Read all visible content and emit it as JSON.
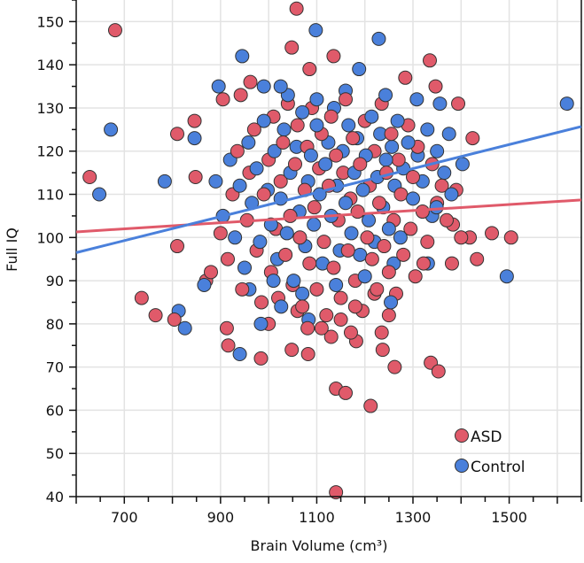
{
  "chart_data": {
    "type": "scatter",
    "title": "",
    "xlabel": "Brain Volume (cm³)",
    "ylabel": "Full IQ",
    "xlim": [
      600,
      1650
    ],
    "ylim": [
      40,
      155
    ],
    "xticks": [
      700,
      900,
      1100,
      1300,
      1500
    ],
    "xtick_labels": [
      "700",
      "900",
      "1100",
      "1300",
      "1500"
    ],
    "yticks": [
      40,
      50,
      60,
      70,
      80,
      90,
      100,
      110,
      120,
      130,
      140,
      150
    ],
    "ytick_labels": [
      "40",
      "50",
      "60",
      "70",
      "80",
      "90",
      "100",
      "110",
      "120",
      "130",
      "140",
      "150"
    ],
    "grid": true,
    "legend_position": "bottom-right",
    "series": [
      {
        "name": "ASD",
        "color": "#e05a6a",
        "fit_line": {
          "x": [
            600,
            1650
          ],
          "y": [
            101.3,
            108.7
          ]
        },
        "points": [
          [
            628,
            114
          ],
          [
            681,
            148
          ],
          [
            736,
            86
          ],
          [
            765,
            82
          ],
          [
            804,
            81
          ],
          [
            810,
            98
          ],
          [
            810,
            124
          ],
          [
            846,
            127
          ],
          [
            848,
            114
          ],
          [
            1058,
            153
          ],
          [
            1135,
            142
          ],
          [
            1140,
            65
          ],
          [
            1160,
            64
          ],
          [
            1140,
            41
          ],
          [
            1212,
            61
          ],
          [
            1262,
            70
          ],
          [
            1337,
            71
          ],
          [
            1353,
            69
          ],
          [
            1284,
            137
          ],
          [
            1347,
            135
          ],
          [
            1400,
            100
          ],
          [
            1418,
            100
          ],
          [
            1433,
            95
          ],
          [
            1464,
            101
          ],
          [
            1504,
            100
          ],
          [
            1424,
            123
          ],
          [
            1394,
            131
          ],
          [
            1390,
            111
          ],
          [
            1383,
            103
          ],
          [
            1381,
            94
          ],
          [
            1322,
            94
          ],
          [
            1335,
            141
          ],
          [
            916,
            75
          ],
          [
            913,
            79
          ],
          [
            984,
            72
          ],
          [
            1048,
            74
          ],
          [
            1081,
            79
          ],
          [
            1082,
            73
          ],
          [
            1130,
            77
          ],
          [
            1171,
            78
          ],
          [
            1182,
            76
          ],
          [
            1237,
            74
          ],
          [
            1235,
            78
          ],
          [
            905,
            132
          ],
          [
            942,
            133
          ],
          [
            962,
            136
          ],
          [
            1085,
            139
          ],
          [
            1048,
            144
          ],
          [
            870,
            90
          ],
          [
            880,
            92
          ],
          [
            900,
            101
          ],
          [
            915,
            95
          ],
          [
            925,
            110
          ],
          [
            935,
            120
          ],
          [
            945,
            88
          ],
          [
            955,
            104
          ],
          [
            960,
            115
          ],
          [
            970,
            125
          ],
          [
            975,
            97
          ],
          [
            985,
            85
          ],
          [
            990,
            110
          ],
          [
            1000,
            118
          ],
          [
            1005,
            92
          ],
          [
            1010,
            128
          ],
          [
            1015,
            102
          ],
          [
            1020,
            86
          ],
          [
            1025,
            113
          ],
          [
            1030,
            122
          ],
          [
            1035,
            96
          ],
          [
            1040,
            131
          ],
          [
            1045,
            105
          ],
          [
            1050,
            89
          ],
          [
            1055,
            117
          ],
          [
            1060,
            126
          ],
          [
            1065,
            100
          ],
          [
            1070,
            84
          ],
          [
            1075,
            111
          ],
          [
            1080,
            121
          ],
          [
            1085,
            94
          ],
          [
            1090,
            130
          ],
          [
            1095,
            107
          ],
          [
            1100,
            88
          ],
          [
            1105,
            116
          ],
          [
            1110,
            124
          ],
          [
            1115,
            99
          ],
          [
            1120,
            82
          ],
          [
            1125,
            112
          ],
          [
            1130,
            128
          ],
          [
            1135,
            93
          ],
          [
            1140,
            119
          ],
          [
            1145,
            104
          ],
          [
            1150,
            86
          ],
          [
            1155,
            115
          ],
          [
            1160,
            132
          ],
          [
            1165,
            97
          ],
          [
            1170,
            109
          ],
          [
            1175,
            123
          ],
          [
            1180,
            90
          ],
          [
            1185,
            106
          ],
          [
            1190,
            117
          ],
          [
            1195,
            83
          ],
          [
            1200,
            127
          ],
          [
            1205,
            100
          ],
          [
            1210,
            112
          ],
          [
            1215,
            95
          ],
          [
            1220,
            120
          ],
          [
            1225,
            88
          ],
          [
            1230,
            108
          ],
          [
            1235,
            131
          ],
          [
            1240,
            98
          ],
          [
            1245,
            115
          ],
          [
            1250,
            92
          ],
          [
            1255,
            124
          ],
          [
            1260,
            104
          ],
          [
            1265,
            87
          ],
          [
            1270,
            118
          ],
          [
            1275,
            110
          ],
          [
            1280,
            96
          ],
          [
            1290,
            126
          ],
          [
            1295,
            102
          ],
          [
            1300,
            114
          ],
          [
            1305,
            91
          ],
          [
            1310,
            121
          ],
          [
            1320,
            106
          ],
          [
            1330,
            99
          ],
          [
            1340,
            117
          ],
          [
            1350,
            108
          ],
          [
            1360,
            112
          ],
          [
            1370,
            104
          ],
          [
            1000,
            80
          ],
          [
            1060,
            83
          ],
          [
            1110,
            79
          ],
          [
            1150,
            81
          ],
          [
            1180,
            84
          ],
          [
            1220,
            87
          ],
          [
            1250,
            82
          ]
        ]
      },
      {
        "name": "Control",
        "color": "#4a80db",
        "fit_line": {
          "x": [
            600,
            1650
          ],
          "y": [
            96.5,
            125.7
          ]
        },
        "points": [
          [
            648,
            110
          ],
          [
            672,
            125
          ],
          [
            784,
            113
          ],
          [
            813,
            83
          ],
          [
            826,
            79
          ],
          [
            846,
            123
          ],
          [
            866,
            89
          ],
          [
            896,
            135
          ],
          [
            945,
            142
          ],
          [
            990,
            135
          ],
          [
            1025,
            135
          ],
          [
            1098,
            148
          ],
          [
            1229,
            146
          ],
          [
            1188,
            139
          ],
          [
            1243,
            133
          ],
          [
            1308,
            132
          ],
          [
            940,
            73
          ],
          [
            984,
            80
          ],
          [
            1026,
            84
          ],
          [
            1083,
            81
          ],
          [
            1254,
            85
          ],
          [
            1331,
            94
          ],
          [
            1349,
            107
          ],
          [
            1403,
            117
          ],
          [
            1495,
            91
          ],
          [
            1620,
            131
          ],
          [
            1356,
            131
          ],
          [
            890,
            113
          ],
          [
            905,
            105
          ],
          [
            920,
            118
          ],
          [
            930,
            100
          ],
          [
            940,
            112
          ],
          [
            950,
            93
          ],
          [
            958,
            122
          ],
          [
            965,
            108
          ],
          [
            975,
            116
          ],
          [
            982,
            99
          ],
          [
            990,
            127
          ],
          [
            998,
            111
          ],
          [
            1005,
            103
          ],
          [
            1012,
            120
          ],
          [
            1018,
            95
          ],
          [
            1025,
            109
          ],
          [
            1032,
            125
          ],
          [
            1038,
            101
          ],
          [
            1045,
            115
          ],
          [
            1052,
            90
          ],
          [
            1058,
            121
          ],
          [
            1064,
            106
          ],
          [
            1070,
            129
          ],
          [
            1076,
            98
          ],
          [
            1082,
            113
          ],
          [
            1088,
            119
          ],
          [
            1094,
            103
          ],
          [
            1100,
            126
          ],
          [
            1106,
            110
          ],
          [
            1112,
            94
          ],
          [
            1118,
            117
          ],
          [
            1124,
            122
          ],
          [
            1130,
            105
          ],
          [
            1136,
            130
          ],
          [
            1142,
            112
          ],
          [
            1148,
            97
          ],
          [
            1154,
            120
          ],
          [
            1160,
            108
          ],
          [
            1166,
            126
          ],
          [
            1172,
            101
          ],
          [
            1178,
            115
          ],
          [
            1184,
            123
          ],
          [
            1190,
            96
          ],
          [
            1196,
            111
          ],
          [
            1202,
            119
          ],
          [
            1208,
            104
          ],
          [
            1214,
            128
          ],
          [
            1220,
            99
          ],
          [
            1226,
            114
          ],
          [
            1232,
            124
          ],
          [
            1238,
            107
          ],
          [
            1244,
            118
          ],
          [
            1250,
            102
          ],
          [
            1256,
            121
          ],
          [
            1262,
            112
          ],
          [
            1268,
            127
          ],
          [
            1274,
            100
          ],
          [
            1280,
            116
          ],
          [
            1290,
            122
          ],
          [
            1300,
            109
          ],
          [
            1310,
            119
          ],
          [
            1320,
            113
          ],
          [
            1330,
            125
          ],
          [
            1340,
            105
          ],
          [
            1350,
            120
          ],
          [
            1365,
            115
          ],
          [
            1375,
            124
          ],
          [
            1380,
            110
          ],
          [
            960,
            88
          ],
          [
            1010,
            90
          ],
          [
            1070,
            87
          ],
          [
            1140,
            89
          ],
          [
            1200,
            91
          ],
          [
            1260,
            94
          ],
          [
            1100,
            132
          ],
          [
            1160,
            134
          ],
          [
            1040,
            133
          ]
        ]
      }
    ]
  }
}
